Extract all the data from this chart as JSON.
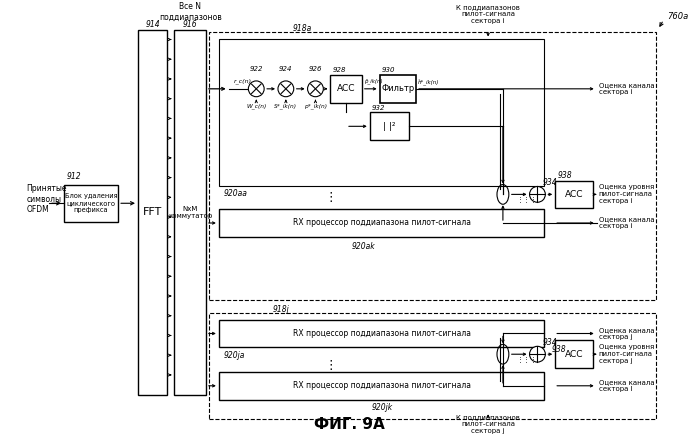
{
  "title": "ФИГ. 9А",
  "bg_color": "#ffffff",
  "label_912": "912",
  "label_914": "914",
  "label_916": "916",
  "label_918a": "918а",
  "label_918j": "918j",
  "label_920aa": "920аа",
  "label_920ak": "920аk",
  "label_920ja": "920jа",
  "label_920jk": "920jk",
  "label_922": "922",
  "label_924": "924",
  "label_926": "926",
  "label_928": "928",
  "label_930": "930",
  "label_932": "932",
  "label_934": "934",
  "label_938i": "938",
  "label_938j": "938",
  "label_760a": "760а",
  "text_ofdm": "Принятые\nсимволы\nOFDM",
  "text_cp_remove": "Блок удаления\nциклического\nпрефикса",
  "text_fft": "FFT",
  "text_nxm": "NxM\nкоммутатор",
  "text_all_n": "Все N\nподдиапазонов",
  "text_rx_ak": "RX процессор поддиапазона пилот-сигнала",
  "text_rx_ja": "RX процессор поддиапазона пилот-сигнала",
  "text_rx_jk": "RX процессор поддиапазона пилот-сигнала",
  "text_acc928": "ACC",
  "text_filter": "Фильтр",
  "text_abs2": "| |²",
  "text_acc_i": "ACC",
  "text_acc_j": "ACC",
  "text_to_i_top": "К поддиапазонов\nпилот-сигнала\nсектора i",
  "text_to_j_bot": "К поддиапазонов\nпилот-сигнала\nсектора j",
  "text_ch_i1": "Оценка канала\nсектора i",
  "text_pilot_i": "Оценка уровня\nпилот-сигнала\nсектора i",
  "text_ch_i2": "Оценка канала\nсектора i",
  "text_ch_j1": "Оценка канала\nсектора j",
  "text_pilot_j": "Оценка уровня\nпилот-сигнала\nсектора j",
  "text_ch_j2": "Оценка канала\nсектора l"
}
